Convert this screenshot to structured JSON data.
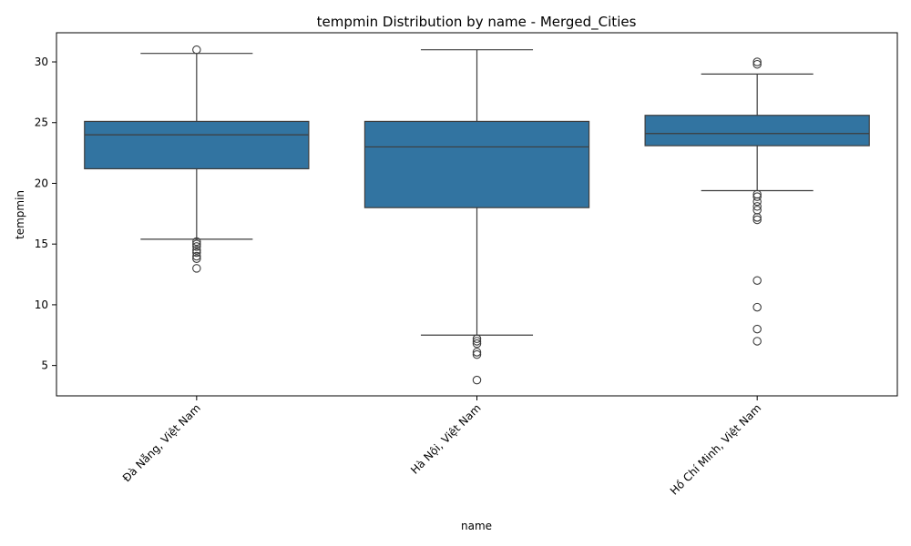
{
  "chart_data": {
    "type": "box",
    "title": "tempmin Distribution by name - Merged_Cities",
    "xlabel": "name",
    "ylabel": "tempmin",
    "ylim": [
      2.5,
      32.4
    ],
    "yticks": [
      5,
      10,
      15,
      20,
      25,
      30
    ],
    "grid": false,
    "box_color": "#3274a1",
    "line_color": "#3d3d3d",
    "categories": [
      "Đà Nẵng, Việt Nam",
      "Hà Nội, Việt Nam",
      "Hồ Chí Minh, Việt Nam"
    ],
    "boxes": [
      {
        "q1": 21.2,
        "median": 24.0,
        "q3": 25.1,
        "whisker_low": 15.4,
        "whisker_high": 30.7,
        "outliers": [
          31.0,
          15.2,
          15.0,
          14.8,
          14.5,
          14.3,
          14.0,
          13.8,
          13.0
        ]
      },
      {
        "q1": 18.0,
        "median": 23.0,
        "q3": 25.1,
        "whisker_low": 7.5,
        "whisker_high": 31.0,
        "outliers": [
          7.2,
          7.0,
          6.8,
          6.1,
          5.9,
          3.8
        ]
      },
      {
        "q1": 23.1,
        "median": 24.1,
        "q3": 25.6,
        "whisker_low": 19.4,
        "whisker_high": 29.0,
        "outliers": [
          30.0,
          29.8,
          19.1,
          18.9,
          18.5,
          18.1,
          17.8,
          17.2,
          17.0,
          12.0,
          9.8,
          8.0,
          7.0
        ]
      }
    ]
  }
}
